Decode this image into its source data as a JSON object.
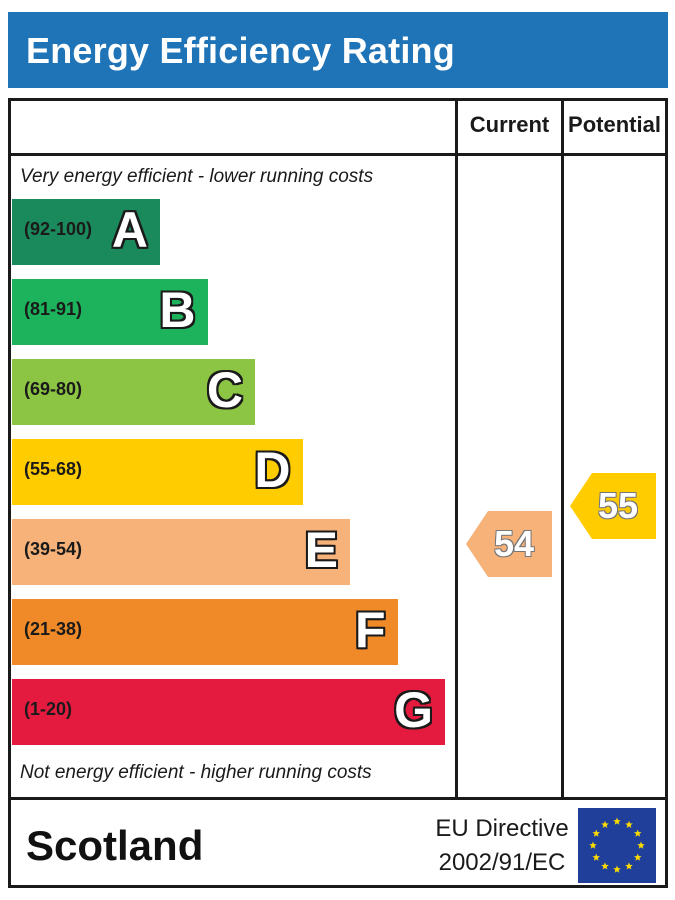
{
  "header": {
    "title": "Energy Efficiency Rating"
  },
  "columns": {
    "current": "Current",
    "potential": "Potential"
  },
  "captions": {
    "top": "Very energy efficient - lower running costs",
    "bottom": "Not energy efficient - higher running costs"
  },
  "chart_data": {
    "type": "bar",
    "title": "Energy Efficiency Rating",
    "bands": [
      {
        "letter": "A",
        "range": "(92-100)",
        "color": "#1a8a5c"
      },
      {
        "letter": "B",
        "range": "(81-91)",
        "color": "#1db25c"
      },
      {
        "letter": "C",
        "range": "(69-80)",
        "color": "#8cc443"
      },
      {
        "letter": "D",
        "range": "(55-68)",
        "color": "#ffcc00"
      },
      {
        "letter": "E",
        "range": "(39-54)",
        "color": "#f7b27a"
      },
      {
        "letter": "F",
        "range": "(21-38)",
        "color": "#f08a28"
      },
      {
        "letter": "G",
        "range": "(1-20)",
        "color": "#e41b3f"
      }
    ],
    "current": {
      "value": 54,
      "band": "E",
      "color": "#f7b27a"
    },
    "potential": {
      "value": 55,
      "band": "D",
      "color": "#ffcc00"
    }
  },
  "footer": {
    "country": "Scotland",
    "directive_line1": "EU Directive",
    "directive_line2": "2002/91/EC"
  },
  "colors": {
    "header_bg": "#1f73b7",
    "flag_bg": "#1f3f9a",
    "flag_star": "#ffdd00"
  }
}
